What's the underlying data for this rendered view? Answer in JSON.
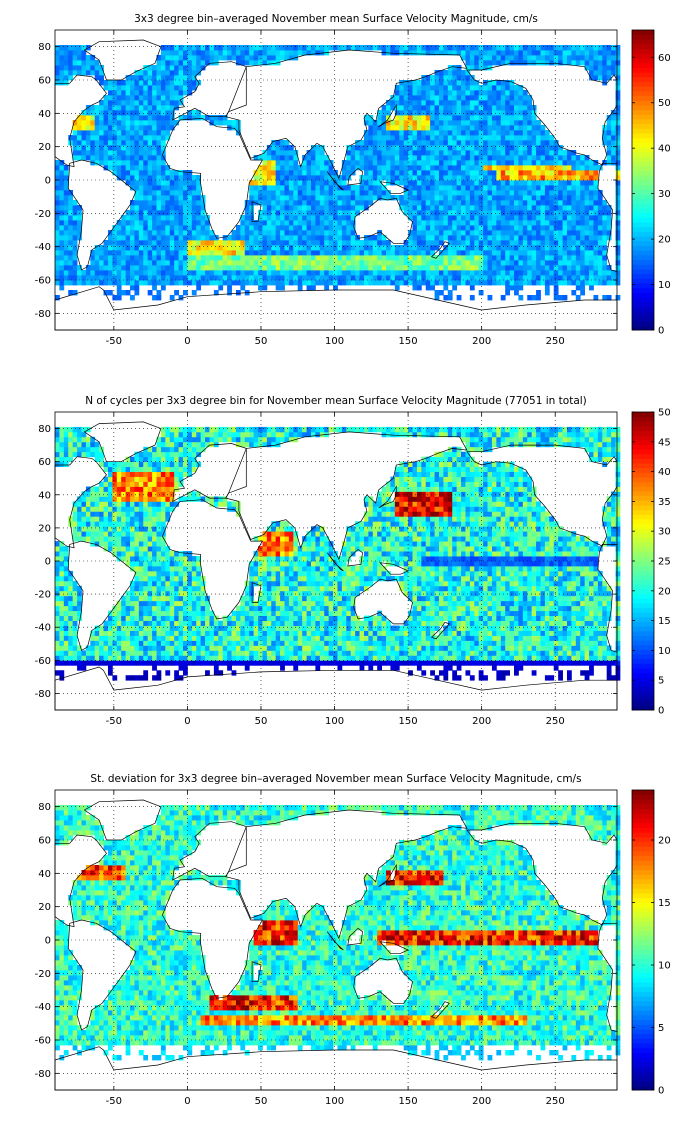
{
  "panels": [
    {
      "title": "3x3 degree bin–averaged November mean Surface Velocity Magnitude, cm/s",
      "colorbar": {
        "min": 0,
        "max": 66,
        "ticks": [
          0,
          10,
          20,
          30,
          40,
          50,
          60
        ]
      }
    },
    {
      "title": "N of cycles per 3x3 degree bin for November mean Surface Velocity Magnitude (77051 in total)",
      "colorbar": {
        "min": 0,
        "max": 50,
        "ticks": [
          0,
          5,
          10,
          15,
          20,
          25,
          30,
          35,
          40,
          45,
          50
        ]
      }
    },
    {
      "title": "St. deviation for 3x3 degree bin–averaged November mean Surface Velocity Magnitude, cm/s",
      "colorbar": {
        "min": 0,
        "max": 24,
        "ticks": [
          0,
          5,
          10,
          15,
          20
        ]
      }
    }
  ],
  "chart_data": [
    {
      "type": "heatmap",
      "title": "3x3 degree bin–averaged November mean Surface Velocity Magnitude, cm/s",
      "xlim": [
        -90,
        292
      ],
      "ylim": [
        -90,
        90
      ],
      "xticks": [
        -50,
        0,
        50,
        100,
        150,
        200,
        250
      ],
      "yticks": [
        -80,
        -60,
        -40,
        -20,
        0,
        20,
        40,
        60,
        80
      ],
      "grid": true,
      "colormap": "jet",
      "colorbar_range": [
        0,
        66
      ],
      "colorbar_ticks": [
        0,
        10,
        20,
        30,
        40,
        50,
        60
      ],
      "features": [
        {
          "lon": 285,
          "lat": 2,
          "w": 150,
          "h": 6,
          "value": 50
        },
        {
          "lon": 150,
          "lat": 35,
          "w": 30,
          "h": 10,
          "value": 45
        },
        {
          "lon": -75,
          "lat": 35,
          "w": 25,
          "h": 10,
          "value": 45
        },
        {
          "lon": 50,
          "lat": 5,
          "w": 20,
          "h": 15,
          "value": 45
        },
        {
          "lon": 20,
          "lat": -40,
          "w": 40,
          "h": 8,
          "value": 45
        },
        {
          "lon": 100,
          "lat": -50,
          "w": 200,
          "h": 10,
          "value": 35
        },
        {
          "lon": 230,
          "lat": 8,
          "w": 60,
          "h": 4,
          "value": 45
        }
      ]
    },
    {
      "type": "heatmap",
      "title": "N of cycles per 3x3 degree bin for November mean Surface Velocity Magnitude (77051 in total)",
      "xlim": [
        -90,
        292
      ],
      "ylim": [
        -90,
        90
      ],
      "xticks": [
        -50,
        0,
        50,
        100,
        150,
        200,
        250
      ],
      "yticks": [
        -80,
        -60,
        -40,
        -20,
        0,
        20,
        40,
        60,
        80
      ],
      "grid": true,
      "colormap": "jet",
      "colorbar_range": [
        0,
        50
      ],
      "colorbar_ticks": [
        0,
        5,
        10,
        15,
        20,
        25,
        30,
        35,
        40,
        45,
        50
      ],
      "features": [
        {
          "lon": 160,
          "lat": 35,
          "w": 40,
          "h": 15,
          "value": 48
        },
        {
          "lon": -30,
          "lat": 45,
          "w": 40,
          "h": 20,
          "value": 40
        },
        {
          "lon": 60,
          "lat": 10,
          "w": 25,
          "h": 15,
          "value": 40
        },
        {
          "lon": 220,
          "lat": 0,
          "w": 120,
          "h": 5,
          "value": 12
        },
        {
          "lon": 100,
          "lat": -62,
          "w": 380,
          "h": 6,
          "value": 5
        }
      ]
    },
    {
      "type": "heatmap",
      "title": "St. deviation for 3x3 degree bin–averaged November mean Surface Velocity Magnitude, cm/s",
      "xlim": [
        -90,
        292
      ],
      "ylim": [
        -90,
        90
      ],
      "xticks": [
        -50,
        0,
        50,
        100,
        150,
        200,
        250
      ],
      "yticks": [
        -80,
        -60,
        -40,
        -20,
        0,
        20,
        40,
        60,
        80
      ],
      "grid": true,
      "colormap": "jet",
      "colorbar_range": [
        0,
        24
      ],
      "colorbar_ticks": [
        0,
        5,
        10,
        15,
        20
      ],
      "features": [
        {
          "lon": 210,
          "lat": 2,
          "w": 160,
          "h": 8,
          "value": 22
        },
        {
          "lon": 155,
          "lat": 38,
          "w": 40,
          "h": 10,
          "value": 22
        },
        {
          "lon": -60,
          "lat": 40,
          "w": 35,
          "h": 10,
          "value": 21
        },
        {
          "lon": 45,
          "lat": -38,
          "w": 60,
          "h": 8,
          "value": 22
        },
        {
          "lon": 120,
          "lat": -48,
          "w": 220,
          "h": 8,
          "value": 19
        },
        {
          "lon": 60,
          "lat": 5,
          "w": 30,
          "h": 15,
          "value": 22
        }
      ]
    }
  ]
}
